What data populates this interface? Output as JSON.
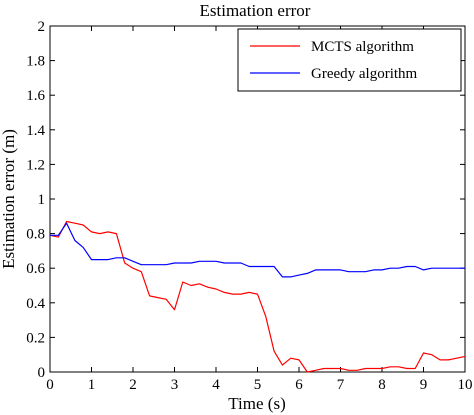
{
  "chart_data": {
    "type": "line",
    "title": "Estimation error",
    "xlabel": "Time (s)",
    "ylabel": "Estimation error (m)",
    "xlim": [
      0,
      10
    ],
    "ylim": [
      0,
      2
    ],
    "xticks": [
      "0",
      "1",
      "2",
      "3",
      "4",
      "5",
      "6",
      "7",
      "8",
      "9",
      "10"
    ],
    "yticks": [
      "0",
      "0.2",
      "0.4",
      "0.6",
      "0.8",
      "1",
      "1.2",
      "1.4",
      "1.6",
      "1.8",
      "2"
    ],
    "grid": false,
    "legend_position": "top-right",
    "series": [
      {
        "name": "MCTS algorithm",
        "color": "#ff0000",
        "x": [
          0,
          0.2,
          0.4,
          0.6,
          0.8,
          1.0,
          1.2,
          1.4,
          1.6,
          1.8,
          2.0,
          2.2,
          2.4,
          2.6,
          2.8,
          3.0,
          3.2,
          3.4,
          3.6,
          3.8,
          4.0,
          4.2,
          4.4,
          4.6,
          4.8,
          5.0,
          5.2,
          5.4,
          5.6,
          5.8,
          6.0,
          6.2,
          6.4,
          6.6,
          6.8,
          7.0,
          7.2,
          7.4,
          7.6,
          7.8,
          8.0,
          8.2,
          8.4,
          8.6,
          8.8,
          9.0,
          9.2,
          9.4,
          9.6,
          9.8,
          10.0
        ],
        "y": [
          0.79,
          0.78,
          0.87,
          0.86,
          0.85,
          0.81,
          0.8,
          0.81,
          0.8,
          0.63,
          0.6,
          0.58,
          0.44,
          0.43,
          0.42,
          0.36,
          0.52,
          0.5,
          0.51,
          0.49,
          0.48,
          0.46,
          0.45,
          0.45,
          0.46,
          0.45,
          0.32,
          0.12,
          0.04,
          0.08,
          0.07,
          0.0,
          0.01,
          0.02,
          0.02,
          0.02,
          0.01,
          0.01,
          0.02,
          0.02,
          0.02,
          0.03,
          0.03,
          0.02,
          0.02,
          0.11,
          0.1,
          0.07,
          0.07,
          0.08,
          0.09
        ]
      },
      {
        "name": "Greedy algorithm",
        "color": "#0000ff",
        "x": [
          0,
          0.2,
          0.4,
          0.6,
          0.8,
          1.0,
          1.2,
          1.4,
          1.6,
          1.8,
          2.0,
          2.2,
          2.4,
          2.6,
          2.8,
          3.0,
          3.2,
          3.4,
          3.6,
          3.8,
          4.0,
          4.2,
          4.4,
          4.6,
          4.8,
          5.0,
          5.2,
          5.4,
          5.6,
          5.8,
          6.0,
          6.2,
          6.4,
          6.6,
          6.8,
          7.0,
          7.2,
          7.4,
          7.6,
          7.8,
          8.0,
          8.2,
          8.4,
          8.6,
          8.8,
          9.0,
          9.2,
          9.4,
          9.6,
          9.8,
          10.0
        ],
        "y": [
          0.79,
          0.79,
          0.86,
          0.76,
          0.72,
          0.65,
          0.65,
          0.65,
          0.66,
          0.66,
          0.64,
          0.62,
          0.62,
          0.62,
          0.62,
          0.63,
          0.63,
          0.63,
          0.64,
          0.64,
          0.64,
          0.63,
          0.63,
          0.63,
          0.61,
          0.61,
          0.61,
          0.61,
          0.55,
          0.55,
          0.56,
          0.57,
          0.59,
          0.59,
          0.59,
          0.59,
          0.58,
          0.58,
          0.58,
          0.59,
          0.59,
          0.6,
          0.6,
          0.61,
          0.61,
          0.59,
          0.6,
          0.6,
          0.6,
          0.6,
          0.6
        ]
      }
    ]
  }
}
